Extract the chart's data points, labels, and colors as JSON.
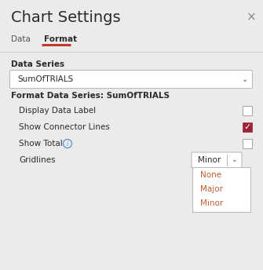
{
  "title": "Chart Settings",
  "close_btn": "×",
  "tab_data": "Data",
  "tab_format": "Format",
  "tab_underline_color": "#c0392b",
  "section_label": "Data Series",
  "dropdown_value": "SumOfTRIALS",
  "format_section_label": "Format Data Series: SumOfTRIALS",
  "rows": [
    {
      "label": "Display Data Label",
      "type": "checkbox",
      "checked": false
    },
    {
      "label": "Show Connector Lines",
      "type": "checkbox",
      "checked": true
    },
    {
      "label": "Show Total",
      "type": "checkbox",
      "checked": false,
      "info": true
    },
    {
      "label": "Gridlines",
      "type": "dropdown",
      "value": "Minor"
    }
  ],
  "dropdown_options": [
    "None",
    "Major",
    "Minor"
  ],
  "bg_color": "#ebebeb",
  "white": "#ffffff",
  "checkbox_checked_color": "#9b2335",
  "checkbox_border": "#aaaaaa",
  "dropdown_border": "#bbbbbb",
  "text_color": "#2b2b2b",
  "tab_inactive_color": "#555555",
  "option_text_color": "#c06030",
  "title_fontsize": 14,
  "label_fontsize": 7.5,
  "section_fontsize": 7.5,
  "format_fontsize": 7.5
}
